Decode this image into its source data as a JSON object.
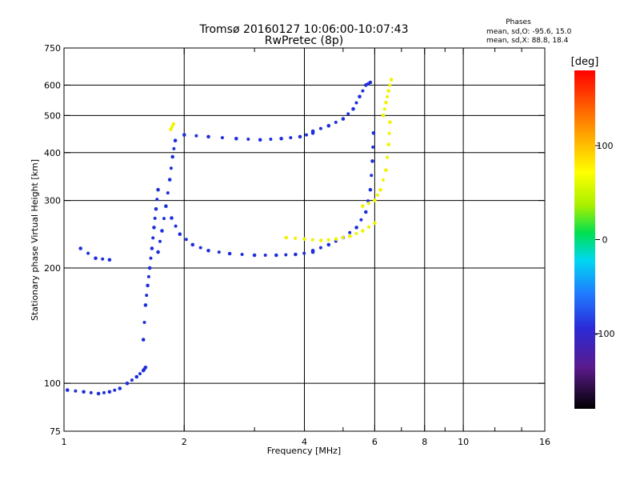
{
  "header": {
    "title_line1": "Tromsø 20160127 10:06:00-10:07:43",
    "title_line2": "RwPretec (8p)",
    "stats_title": "Phases",
    "stats_o": "mean, sd,O: -95.6, 15.0",
    "stats_x": "mean, sd,X:  88.8, 18.4"
  },
  "chart_data": {
    "type": "scatter",
    "title": "Tromsø 20160127 10:06:00-10:07:43",
    "subtitle": "RwPretec (8p)",
    "xlabel": "Frequency [MHz]",
    "ylabel": "Stationary phase Virtual Height [km]",
    "x_scale": "log",
    "y_scale": "log",
    "xlim": [
      1,
      16
    ],
    "ylim": [
      75,
      750
    ],
    "x_ticks": [
      1,
      2,
      4,
      6,
      8,
      10,
      16
    ],
    "x_tick_labels": [
      "1",
      "2",
      "4",
      "6",
      "8",
      "10",
      "16"
    ],
    "x_minor_ticks": [
      3,
      5,
      7,
      9,
      12,
      14
    ],
    "y_ticks": [
      75,
      100,
      200,
      300,
      400,
      500,
      600,
      750
    ],
    "y_tick_labels": [
      "75",
      "100",
      "200",
      "300",
      "400",
      "500",
      "600",
      "750"
    ],
    "grid": true,
    "colorbar": {
      "label": "[deg]",
      "range": [
        -180,
        180
      ],
      "ticks": [
        100,
        0,
        -100
      ],
      "tick_labels": [
        "100",
        "0",
        "-100"
      ]
    },
    "series": [
      {
        "phase_deg": -100,
        "color": "#1d2fdb",
        "traces": [
          {
            "x": [
              1.02,
              1.12,
              1.22,
              1.3,
              1.38
            ],
            "y": [
              96,
              95,
              94,
              95,
              97
            ]
          },
          {
            "x": [
              1.44,
              1.52,
              1.58,
              1.6
            ],
            "y": [
              100,
              104,
              108,
              110
            ]
          },
          {
            "x": [
              1.58,
              1.6,
              1.62,
              1.64,
              1.66,
              1.68,
              1.7,
              1.72
            ],
            "y": [
              130,
              160,
              180,
              200,
              225,
              255,
              285,
              320
            ]
          },
          {
            "x": [
              1.72,
              1.76,
              1.8,
              1.84,
              1.87,
              1.9
            ],
            "y": [
              220,
              250,
              290,
              340,
              390,
              430
            ]
          },
          {
            "x": [
              1.86,
              1.95,
              2.1,
              2.3,
              2.6,
              3.0,
              3.4,
              3.8,
              4.2
            ],
            "y": [
              270,
              245,
              230,
              222,
              218,
              216,
              216,
              217,
              220
            ]
          },
          {
            "x": [
              4.2,
              4.6,
              5.0,
              5.4,
              5.7,
              5.85,
              5.92,
              5.96
            ],
            "y": [
              222,
              230,
              240,
              255,
              280,
              320,
              380,
              450
            ]
          },
          {
            "x": [
              2.0,
              2.3,
              2.7,
              3.1,
              3.5,
              3.9,
              4.2
            ],
            "y": [
              445,
              440,
              435,
              432,
              435,
              440,
              450
            ]
          },
          {
            "x": [
              4.2,
              4.6,
              5.0,
              5.3,
              5.5,
              5.7,
              5.85
            ],
            "y": [
              455,
              470,
              490,
              520,
              560,
              600,
              610
            ]
          },
          {
            "x": [
              1.1,
              1.2,
              1.3
            ],
            "y": [
              225,
              212,
              210
            ]
          }
        ]
      },
      {
        "phase_deg": 100,
        "color": "#f2f200",
        "traces": [
          {
            "x": [
              3.6,
              4.0,
              4.4,
              4.8,
              5.2,
              5.6,
              6.0
            ],
            "y": [
              240,
              238,
              236,
              238,
              242,
              250,
              262
            ]
          },
          {
            "x": [
              5.6,
              6.0,
              6.2,
              6.4,
              6.5,
              6.55
            ],
            "y": [
              290,
              300,
              320,
              360,
              420,
              480
            ]
          },
          {
            "x": [
              6.3,
              6.4,
              6.5,
              6.6
            ],
            "y": [
              500,
              540,
              580,
              620
            ]
          },
          {
            "x": [
              1.85,
              1.88
            ],
            "y": [
              460,
              475
            ]
          }
        ]
      }
    ]
  }
}
